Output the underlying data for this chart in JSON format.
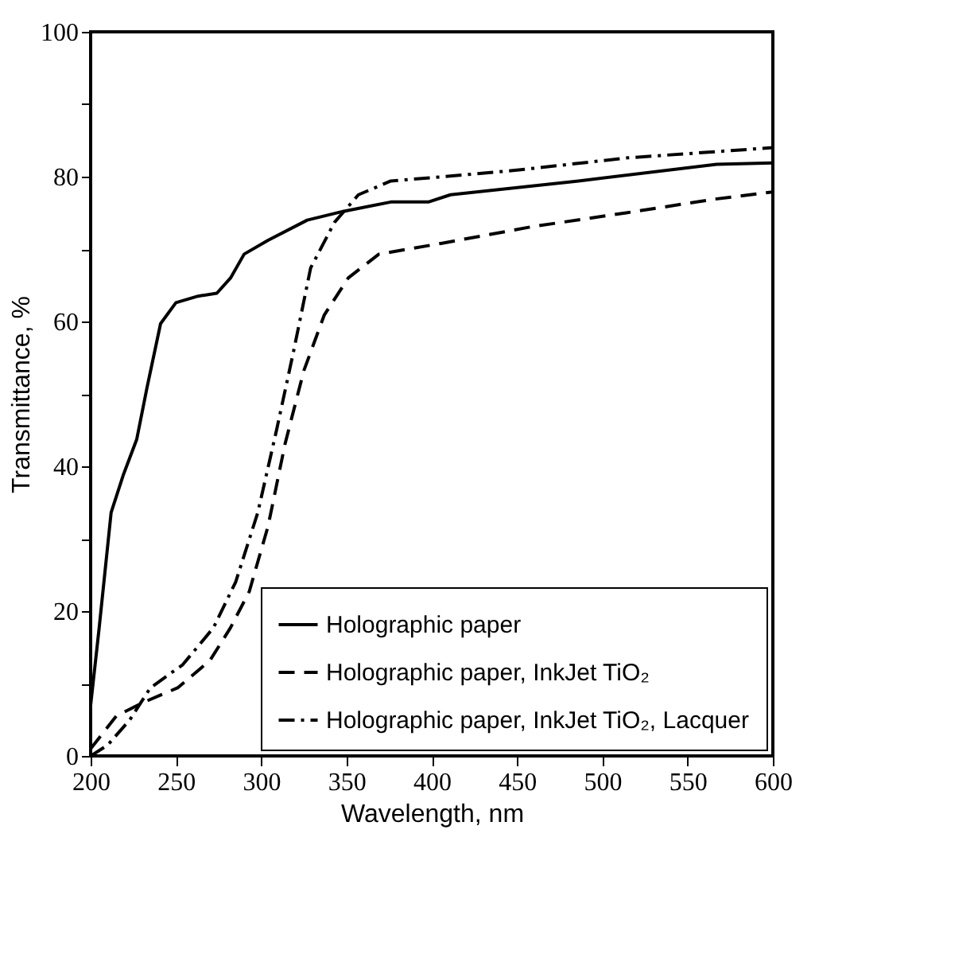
{
  "chart_data": {
    "type": "line",
    "xlabel": "Wavelength, nm",
    "ylabel": "Transmittance, %",
    "xlim": [
      200,
      600
    ],
    "ylim": [
      0,
      100
    ],
    "xticks": [
      200,
      250,
      300,
      350,
      400,
      450,
      500,
      550,
      600
    ],
    "yticks": [
      0,
      {
        "value": 10,
        "label": null
      },
      20,
      {
        "value": 30,
        "label": null
      },
      40,
      {
        "value": 50,
        "label": null
      },
      60,
      {
        "value": 70,
        "label": null
      },
      80,
      {
        "value": 90,
        "label": null
      },
      100
    ],
    "grid": false,
    "legend": "bottom right",
    "marker": "none",
    "series": [
      {
        "name": "Holographic paper",
        "color": "#000000",
        "line_style": "solid",
        "x": [
          200,
          205,
          212,
          219,
          227,
          233,
          241,
          250,
          263,
          274,
          282,
          290,
          304,
          327,
          348,
          376,
          398,
          411,
          486,
          567,
          600
        ],
        "values": [
          7,
          17.7,
          33.6,
          38.7,
          43.7,
          50.8,
          59.7,
          62.6,
          63.5,
          63.9,
          66,
          69.3,
          71.2,
          74,
          75.2,
          76.5,
          76.5,
          77.5,
          79.4,
          81.7,
          81.9
        ]
      },
      {
        "name": "Holographic paper, InkJet TiO₂",
        "color": "#000000",
        "line_style": "dashed",
        "x": [
          200,
          215,
          231,
          251,
          270,
          282,
          293,
          304,
          314,
          325,
          337,
          351,
          369,
          406,
          459,
          514,
          566,
          600
        ],
        "values": [
          1,
          5.5,
          7.4,
          9.4,
          13.2,
          17.7,
          22.7,
          31.7,
          43.1,
          53.2,
          60.9,
          66,
          69.3,
          70.8,
          73.1,
          75,
          76.9,
          77.9
        ]
      },
      {
        "name": "Holographic paper, InkJet TiO₂, Lacquer",
        "color": "#000000",
        "line_style": "dashdot",
        "x": [
          200,
          210,
          223,
          235,
          254,
          272,
          285,
          298,
          309,
          319,
          329,
          343,
          357,
          376,
          407,
          450,
          515,
          600
        ],
        "values": [
          0,
          1.5,
          5,
          9.4,
          12.6,
          17.7,
          24,
          33.6,
          45,
          55.9,
          67.4,
          73.7,
          77.5,
          79.4,
          80,
          80.9,
          82.6,
          84
        ]
      }
    ]
  }
}
